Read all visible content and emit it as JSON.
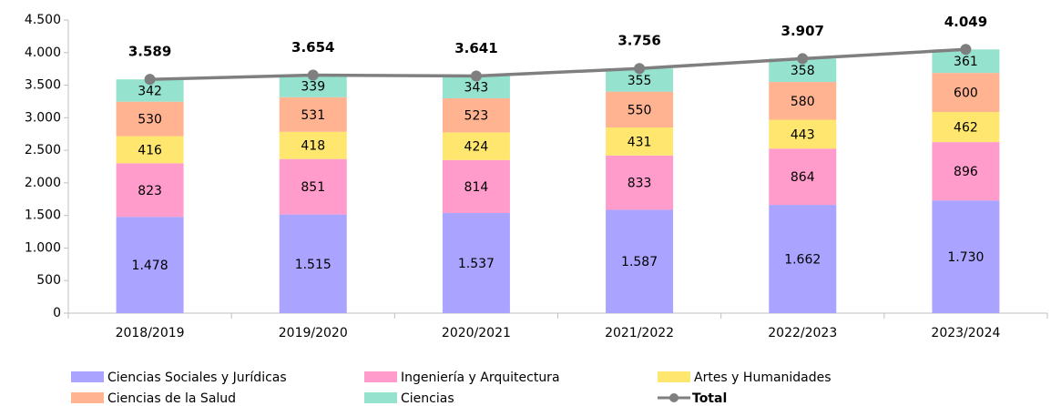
{
  "chart_data": {
    "type": "bar",
    "stacked": true,
    "categories": [
      "2018/2019",
      "2019/2020",
      "2020/2021",
      "2021/2022",
      "2022/2023",
      "2023/2024"
    ],
    "series": [
      {
        "name": "Ciencias Sociales y Jurídicas",
        "color": "#aaa3ff",
        "values": [
          1478,
          1515,
          1537,
          1587,
          1662,
          1730
        ],
        "value_labels": [
          "1.478",
          "1.515",
          "1.537",
          "1.587",
          "1.662",
          "1.730"
        ]
      },
      {
        "name": "Ingeniería y Arquitectura",
        "color": "#ff9ccc",
        "values": [
          823,
          851,
          814,
          833,
          864,
          896
        ]
      },
      {
        "name": "Artes y Humanidades",
        "color": "#ffe66e",
        "values": [
          416,
          418,
          424,
          431,
          443,
          462
        ]
      },
      {
        "name": "Ciencias de la Salud",
        "color": "#ffb391",
        "values": [
          530,
          531,
          523,
          550,
          580,
          600
        ]
      },
      {
        "name": "Ciencias",
        "color": "#95e2cf",
        "values": [
          342,
          339,
          343,
          355,
          358,
          361
        ]
      },
      {
        "name": "Total",
        "type": "line",
        "color": "#7f7f7f",
        "values": [
          3589,
          3654,
          3641,
          3756,
          3907,
          4049
        ],
        "value_labels": [
          "3.589",
          "3.654",
          "3.641",
          "3.756",
          "3.907",
          "4.049"
        ]
      }
    ],
    "ylim": [
      0,
      4500
    ],
    "yticks": [
      0,
      500,
      {
        "value": 1000,
        "label": "1.000"
      },
      {
        "value": 1500,
        "label": "1.500"
      },
      {
        "value": 2000,
        "label": "2.000"
      },
      {
        "value": 2500,
        "label": "2.500"
      },
      {
        "value": 3000,
        "label": "3.000"
      },
      {
        "value": 3500,
        "label": "3.500"
      },
      {
        "value": 4000,
        "label": "4.000"
      },
      {
        "value": 4500,
        "label": "4.500"
      }
    ],
    "legend": "bottom"
  }
}
